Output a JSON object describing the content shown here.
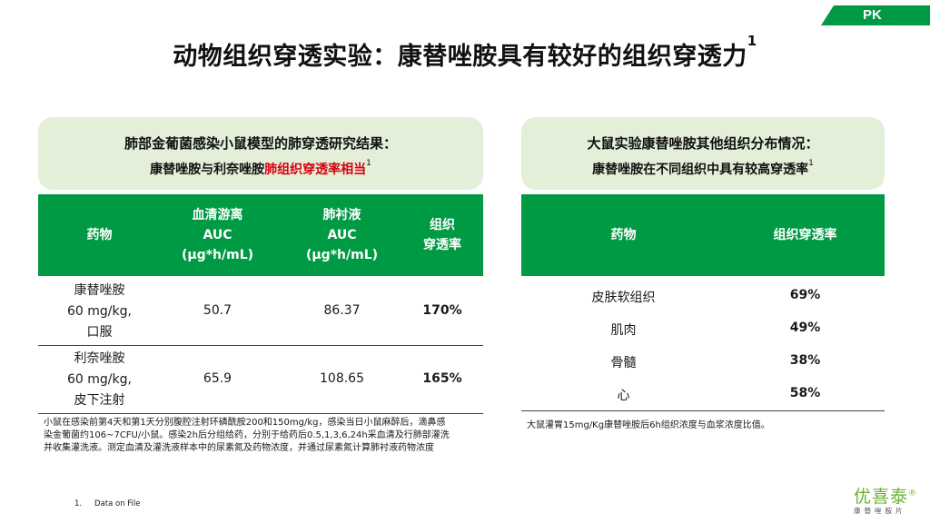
{
  "tag": "PK",
  "title": "动物组织穿透实验：康替唑胺具有较好的组织穿透力",
  "title_sup": "1",
  "left_panel": {
    "headline": "肺部金葡菌感染小鼠模型的肺穿透研究结果：",
    "subline_prefix": "康替唑胺与利奈唑胺",
    "subline_highlight": "肺组织穿透率相当",
    "subline_sup": "1",
    "columns": {
      "drug": "药物",
      "serum": [
        "血清游离",
        "AUC",
        "(µg*h/mL)"
      ],
      "lung": [
        "肺衬液",
        "AUC",
        "(µg*h/mL)"
      ],
      "penetration": [
        "组织",
        "穿透率"
      ]
    },
    "rows": [
      {
        "drug": [
          "康替唑胺",
          "60 mg/kg,",
          "口服"
        ],
        "serum_auc": "50.7",
        "lung_auc": "86.37",
        "penetration": "170%"
      },
      {
        "drug": [
          "利奈唑胺",
          "60 mg/kg,",
          "皮下注射"
        ],
        "serum_auc": "65.9",
        "lung_auc": "108.65",
        "penetration": "165%"
      }
    ],
    "note": [
      "小鼠在感染前第4天和第1天分别腹腔注射环磷酰胺200和150mg/kg，感染当日小鼠麻醉后，滴鼻感",
      "染金葡菌约106~7CFU/小鼠。感染2h后分组给药，分别于给药后0.5,1,3,6,24h采血清及行肺部灌洗",
      "并收集灌洗液。测定血清及灌洗液样本中的尿素氮及药物浓度，并通过尿素氮计算肺衬液药物浓度"
    ]
  },
  "right_panel": {
    "headline": "大鼠实验康替唑胺其他组织分布情况：",
    "subline": "康替唑胺在不同组织中具有较高穿透率",
    "subline_sup": "1",
    "columns": {
      "drug": "药物",
      "penetration": "组织穿透率"
    },
    "rows": [
      {
        "tissue": "皮肤软组织",
        "penetration": "69%"
      },
      {
        "tissue": "肌肉",
        "penetration": "49%"
      },
      {
        "tissue": "骨髓",
        "penetration": "38%"
      },
      {
        "tissue": "心",
        "penetration": "58%"
      }
    ],
    "note": "大鼠灌胃15mg/Kg康替唑胺后6h组织浓度与血浆浓度比值。"
  },
  "footnote": {
    "number": "1.",
    "text": "Data on File"
  },
  "logo": {
    "brand": "优喜泰",
    "reg": "®",
    "sub": "康替唑胺片"
  },
  "colors": {
    "green": "#009a44",
    "light_green": "#e3efd8",
    "red": "#d7000f"
  }
}
